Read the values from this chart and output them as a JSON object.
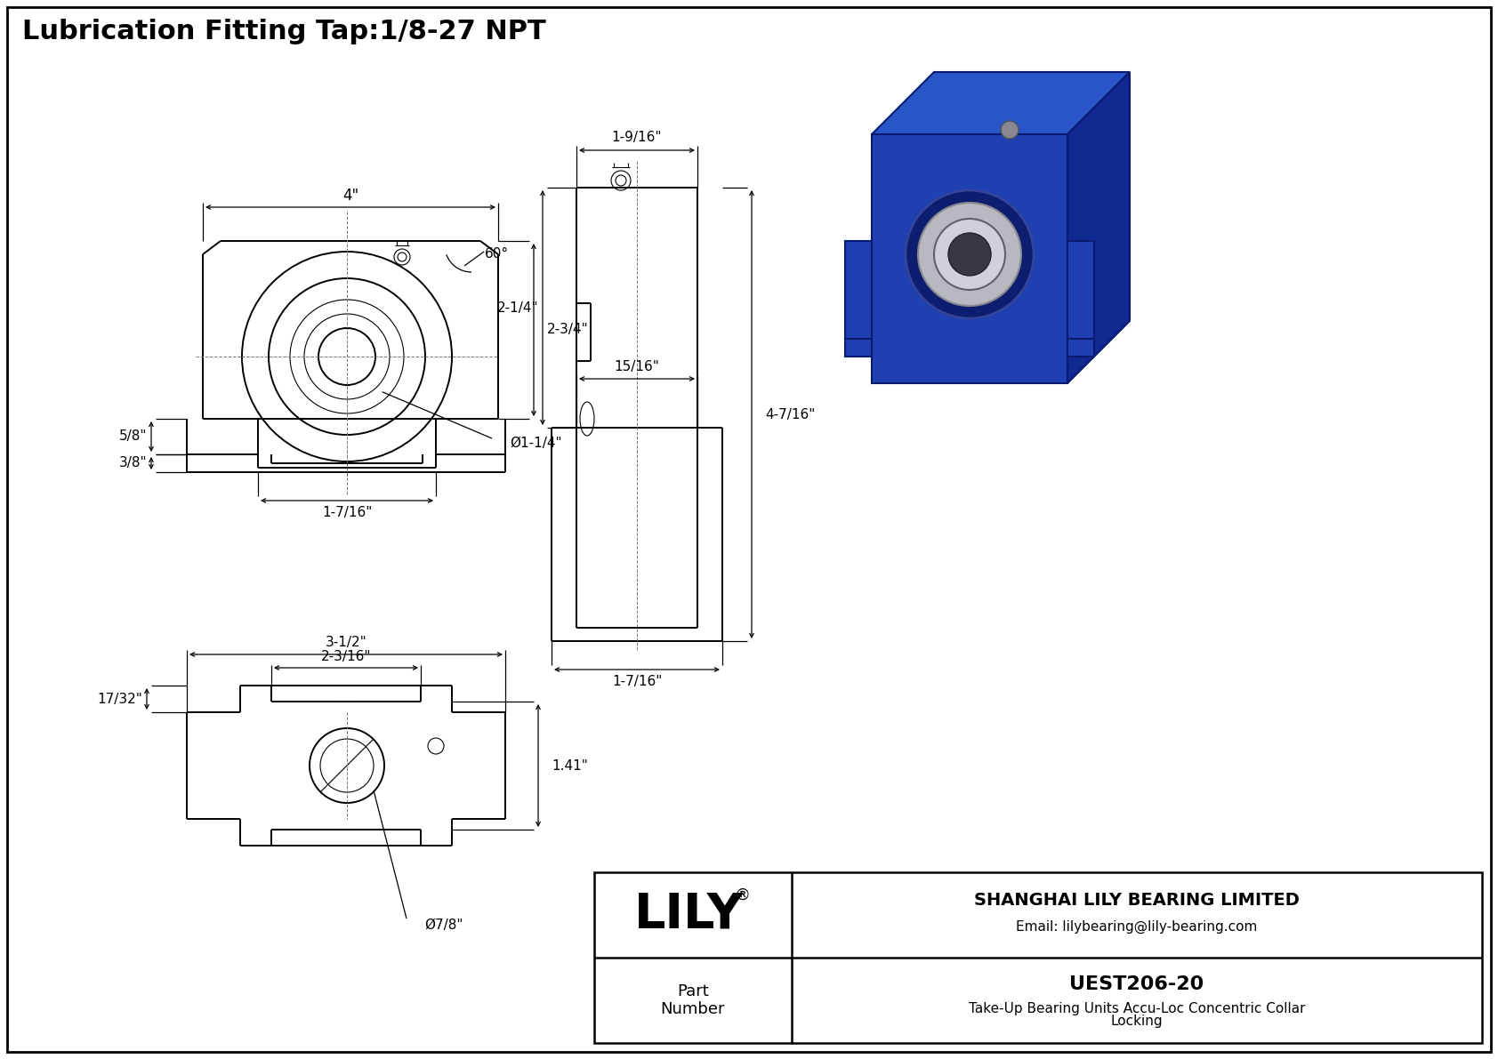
{
  "title": "Lubrication Fitting Tap:1/8-27 NPT",
  "bg_color": "#ffffff",
  "line_color": "#000000",
  "company_name": "SHANGHAI LILY BEARING LIMITED",
  "company_email": "Email: lilybearing@lily-bearing.com",
  "part_number": "UEST206-20",
  "part_desc_line1": "Take-Up Bearing Units Accu-Loc Concentric Collar",
  "part_desc_line2": "Locking",
  "dim_4in": "4\"",
  "dim_60deg": "60°",
  "dim_5_8": "5/8\"",
  "dim_2_3_4": "2-3/4\"",
  "dim_1_7_16_front": "1-7/16\"",
  "dim_phi_1_1_4": "Ø1-1/4\"",
  "dim_3_8": "3/8\"",
  "dim_3_1_2": "3-1/2\"",
  "dim_2_3_16": "2-3/16\"",
  "dim_1_41": "1.41\"",
  "dim_phi_7_8": "Ø7/8\"",
  "dim_17_32": "17/32\"",
  "dim_1_9_16": "1-9/16\"",
  "dim_2_1_4": "2-1/4\"",
  "dim_4_7_16": "4-7/16\"",
  "dim_15_16": "15/16\"",
  "dim_1_7_16_side": "1-7/16\""
}
